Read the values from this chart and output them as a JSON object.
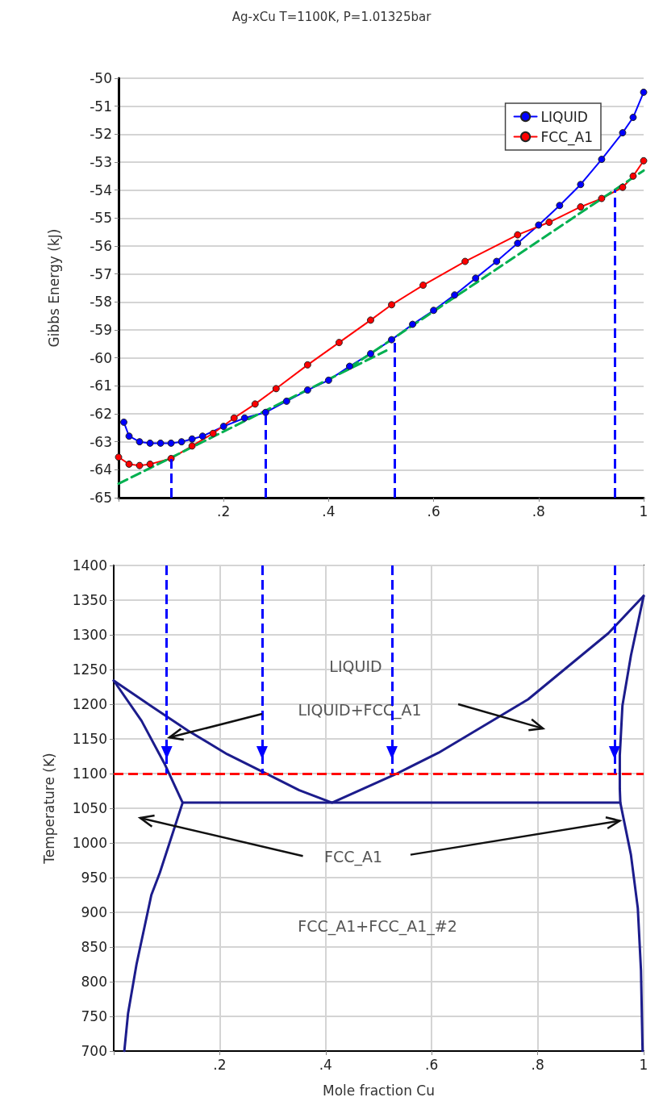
{
  "chart_data": [
    {
      "type": "line",
      "title": "Ag-xCu T=1100K, P=1.01325bar",
      "ylabel": "Gibbs Energy (kJ)",
      "xlim": [
        0,
        1
      ],
      "xticks": [
        {
          "value": 0,
          "label": null
        },
        {
          "value": 0.2,
          "label": ".2"
        },
        {
          "value": 0.4,
          "label": ".4"
        },
        {
          "value": 0.6,
          "label": ".6"
        },
        {
          "value": 0.8,
          "label": ".8"
        },
        1
      ],
      "ylim": [
        -65,
        -50
      ],
      "yticks": [
        -65,
        -64,
        -63,
        -62,
        -61,
        -60,
        -59,
        -58,
        -57,
        -56,
        -55,
        -54,
        -53,
        -52,
        -51,
        -50
      ],
      "grid": "y",
      "legend": "top right",
      "marker": "circle",
      "series": [
        {
          "name": "LIQUID",
          "color": "#0000ff",
          "x": [
            0.01,
            0.02,
            0.04,
            0.06,
            0.08,
            0.1,
            0.12,
            0.14,
            0.16,
            0.2,
            0.24,
            0.28,
            0.32,
            0.36,
            0.4,
            0.44,
            0.48,
            0.52,
            0.56,
            0.6,
            0.64,
            0.68,
            0.72,
            0.76,
            0.8,
            0.84,
            0.88,
            0.92,
            0.96,
            0.98,
            1.0
          ],
          "values": [
            -62.3,
            -62.8,
            -63.0,
            -63.05,
            -63.05,
            -63.05,
            -63.0,
            -62.9,
            -62.8,
            -62.45,
            -62.15,
            -61.95,
            -61.55,
            -61.15,
            -60.8,
            -60.3,
            -59.85,
            -59.35,
            -58.8,
            -58.3,
            -57.75,
            -57.15,
            -56.55,
            -55.9,
            -55.25,
            -54.55,
            -53.8,
            -52.9,
            -51.95,
            -51.4,
            -50.5
          ]
        },
        {
          "name": "FCC_A1",
          "color": "#ff0000",
          "x": [
            0,
            0.02,
            0.04,
            0.06,
            0.1,
            0.14,
            0.18,
            0.22,
            0.26,
            0.3,
            0.36,
            0.42,
            0.48,
            0.52,
            0.58,
            0.66,
            0.76,
            0.82,
            0.88,
            0.92,
            0.96,
            0.98,
            1.0
          ],
          "values": [
            -63.55,
            -63.8,
            -63.85,
            -63.8,
            -63.6,
            -63.15,
            -62.7,
            -62.15,
            -61.65,
            -61.1,
            -60.25,
            -59.45,
            -58.65,
            -58.1,
            -57.4,
            -56.55,
            -55.6,
            -55.15,
            -54.6,
            -54.3,
            -53.9,
            -53.5,
            -52.95
          ]
        },
        {
          "color": "#00b050",
          "marker": "none",
          "line_style": "dashed",
          "x": [
            0,
            0.51
          ],
          "values": [
            -64.5,
            -59.74
          ]
        },
        {
          "color": "#00b050",
          "marker": "none",
          "line_style": "dashed",
          "x": [
            0.44,
            1
          ],
          "values": [
            -60.35,
            -53.3
          ]
        }
      ],
      "ref_lines": [
        {
          "axis": "x",
          "value": 0.1,
          "color": "#0000ff",
          "line_style": "dashed"
        },
        {
          "axis": "x",
          "value": 0.28,
          "color": "#0000ff",
          "line_style": "dashed"
        },
        {
          "axis": "x",
          "value": 0.525,
          "color": "#0000ff",
          "line_style": "dashed"
        },
        {
          "axis": "x",
          "value": 0.945,
          "color": "#0000ff",
          "line_style": "dashed"
        }
      ]
    },
    {
      "type": "line",
      "xlabel": "Mole fraction Cu",
      "ylabel": "Temperature (K)",
      "xlim": [
        0,
        1
      ],
      "xticks": [
        {
          "value": 0,
          "label": null
        },
        {
          "value": 0.2,
          "label": ".2"
        },
        {
          "value": 0.4,
          "label": ".4"
        },
        {
          "value": 0.6,
          "label": ".6"
        },
        {
          "value": 0.8,
          "label": ".8"
        },
        1
      ],
      "ylim": [
        700,
        1400
      ],
      "yticks": [
        700,
        750,
        800,
        850,
        900,
        950,
        1000,
        1050,
        1100,
        1150,
        1200,
        1250,
        1300,
        1350,
        1400
      ],
      "grid": true,
      "series": [
        {
          "color": "#1c1c8c",
          "x": [
            0,
            0.071,
            0.14,
            0.214,
            0.285,
            0.35,
            0.412,
            0.529,
            0.613,
            0.782,
            0.933,
            1.0
          ],
          "values": [
            1234,
            1197,
            1162,
            1128,
            1101,
            1076,
            1058,
            1098,
            1130,
            1207,
            1302,
            1356
          ]
        },
        {
          "color": "#1c1c8c",
          "x": [
            0,
            0.0525,
            0.096,
            0.13,
            0.087,
            0.071,
            0.043,
            0.027,
            0.02
          ],
          "values": [
            1234,
            1176,
            1114,
            1058,
            957,
            925,
            825,
            754,
            700
          ]
        },
        {
          "color": "#1c1c8c",
          "x": [
            1.0,
            0.976,
            0.96,
            0.955,
            0.955,
            0.956,
            0.976,
            0.989,
            0.995,
            0.998
          ],
          "values": [
            1356,
            1270,
            1198,
            1126,
            1078,
            1058,
            983,
            906,
            816,
            700
          ]
        },
        {
          "color": "#1c1c8c",
          "x": [
            0.13,
            0.956
          ],
          "values": [
            1058,
            1058
          ]
        }
      ],
      "ref_lines": [
        {
          "axis": "y",
          "value": 1100,
          "color": "#ff0000",
          "line_style": "dashed"
        },
        {
          "axis": "x",
          "value": 0.1,
          "color": "#0000ff",
          "line_style": "dashed"
        },
        {
          "axis": "x",
          "value": 0.28,
          "color": "#0000ff",
          "line_style": "dashed"
        },
        {
          "axis": "x",
          "value": 0.525,
          "color": "#0000ff",
          "line_style": "dashed"
        },
        {
          "axis": "x",
          "value": 0.945,
          "color": "#0000ff",
          "line_style": "dashed"
        }
      ],
      "annotations": [
        "LIQUID",
        "LIQUID+FCC_A1",
        "FCC_A1",
        "FCC_A1+FCC_A1_#2"
      ]
    }
  ]
}
